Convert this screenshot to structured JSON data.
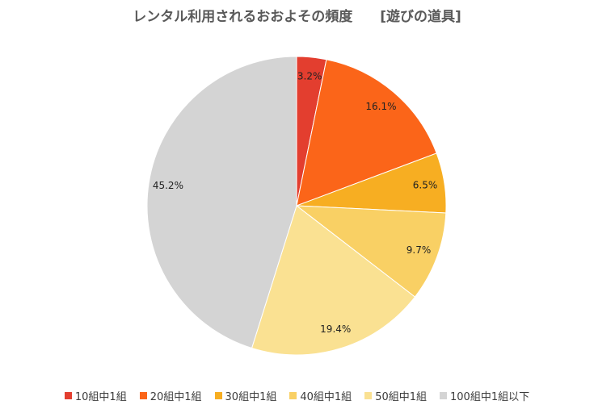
{
  "chart_data": {
    "type": "pie",
    "title": "レンタル利用されるおおよその頻度　　[遊びの道具]",
    "legend_position": "bottom",
    "slices": [
      {
        "label": "10組中1組",
        "value": 3.2,
        "display": "3.2%",
        "color": "#e33e2f"
      },
      {
        "label": "20組中1組",
        "value": 16.1,
        "display": "16.1%",
        "color": "#fb6519"
      },
      {
        "label": "30組中1組",
        "value": 6.5,
        "display": "6.5%",
        "color": "#f7ae22"
      },
      {
        "label": "40組中1組",
        "value": 9.7,
        "display": "9.7%",
        "color": "#f9d064"
      },
      {
        "label": "50組中1組",
        "value": 19.4,
        "display": "19.4%",
        "color": "#fae192"
      },
      {
        "label": "100組中1組以下",
        "value": 45.2,
        "display": "45.2%",
        "color": "#d4d4d4"
      }
    ]
  }
}
